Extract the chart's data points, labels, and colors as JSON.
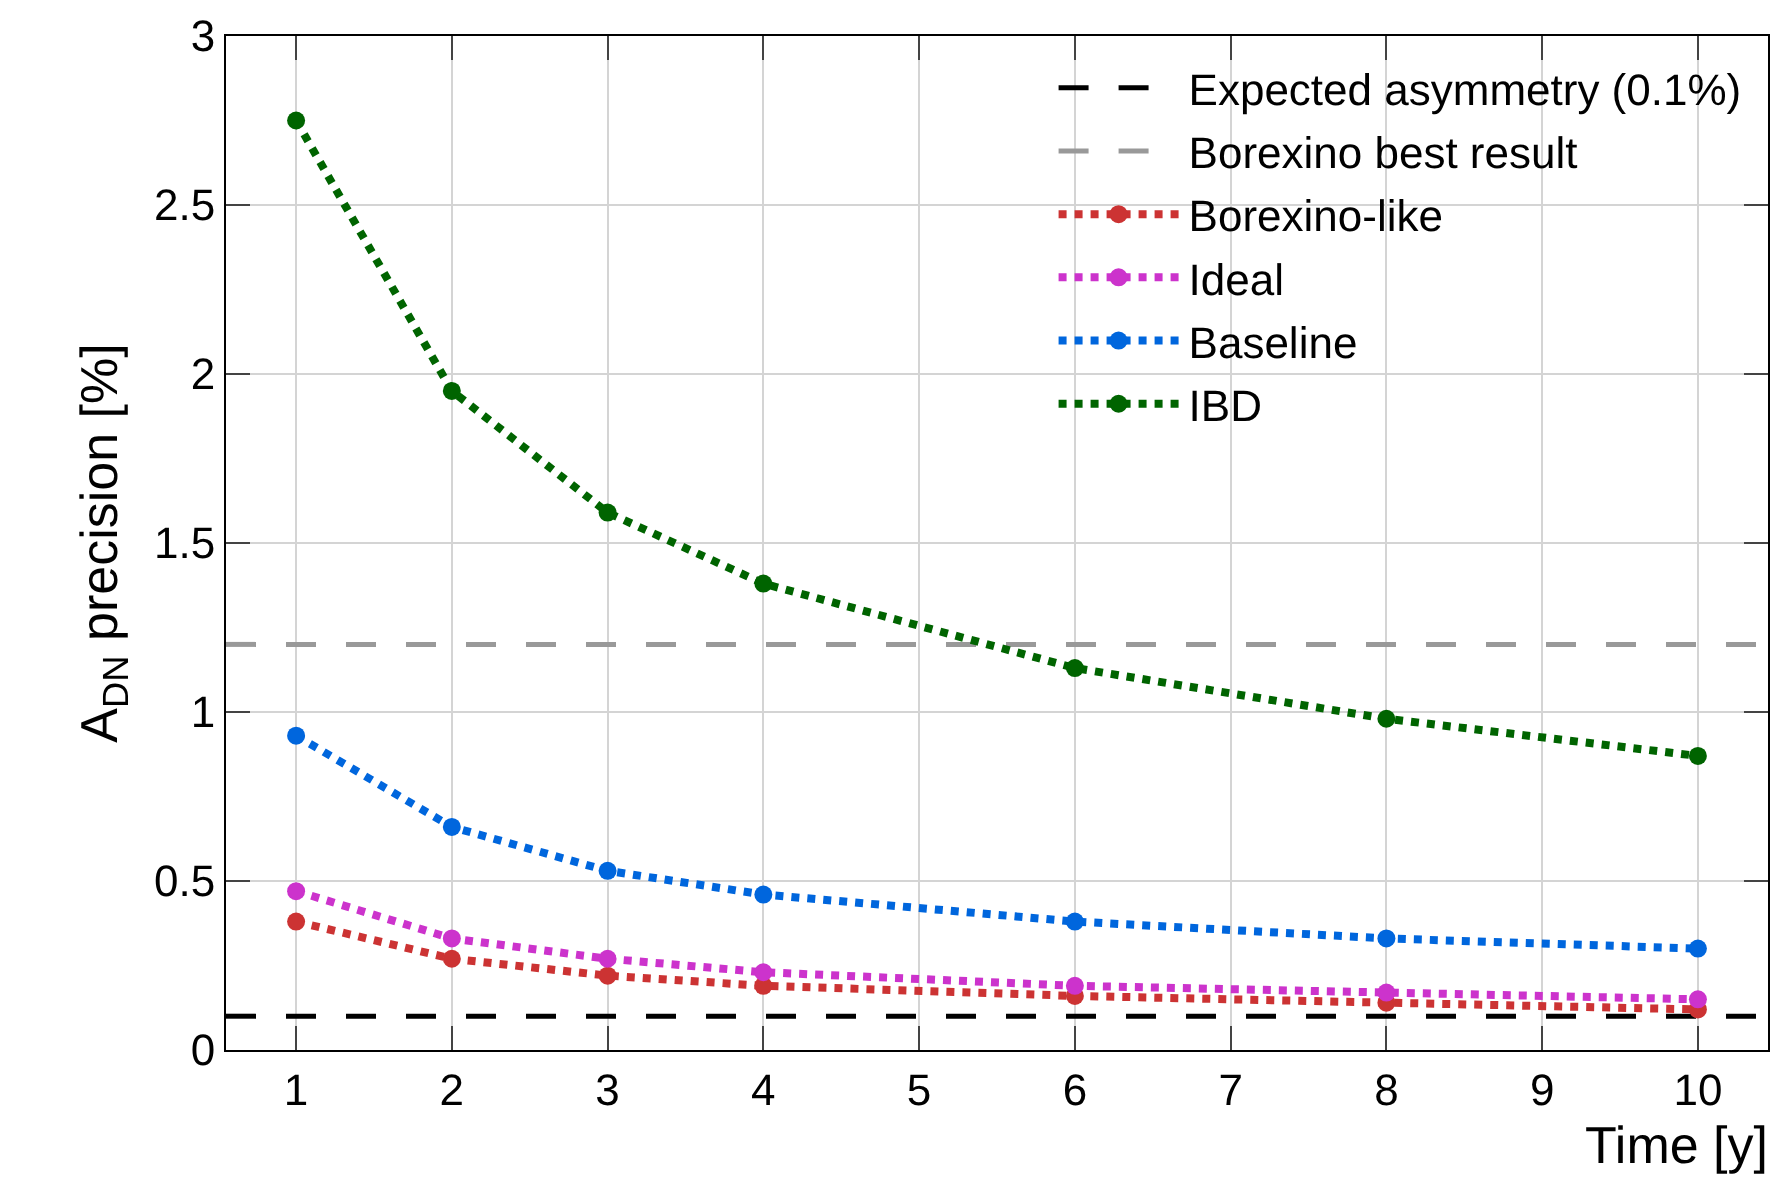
{
  "chart_data": {
    "type": "line",
    "xlabel": "Time [y]",
    "ylabel": "A$_{DN}$ precision [%]",
    "x": [
      1,
      2,
      3,
      4,
      6,
      8,
      10
    ],
    "series": [
      {
        "name": "Borexino-like",
        "color": "#cc3333",
        "values": [
          0.38,
          0.27,
          0.22,
          0.19,
          0.16,
          0.14,
          0.12
        ]
      },
      {
        "name": "Ideal",
        "color": "#cc33cc",
        "values": [
          0.47,
          0.33,
          0.27,
          0.23,
          0.19,
          0.17,
          0.15
        ]
      },
      {
        "name": "Baseline",
        "color": "#0066dd",
        "values": [
          0.93,
          0.66,
          0.53,
          0.46,
          0.38,
          0.33,
          0.3
        ]
      },
      {
        "name": "IBD",
        "color": "#006400",
        "values": [
          2.75,
          1.95,
          1.59,
          1.38,
          1.13,
          0.98,
          0.87
        ]
      }
    ],
    "ref_lines": [
      {
        "axis": "y",
        "value": 0.1,
        "label": "Expected asymmetry (0.1%)",
        "color": "#000000",
        "line_style": "dashed"
      },
      {
        "axis": "y",
        "value": 1.2,
        "label": "Borexino best result",
        "color": "#999999",
        "line_style": "dashed"
      }
    ],
    "xlim": [
      0.55,
      10.45
    ],
    "xticks": [
      1,
      2,
      3,
      4,
      5,
      6,
      7,
      8,
      9,
      10
    ],
    "ylim": [
      0,
      3
    ],
    "yticks": [
      0,
      0.5,
      1,
      1.5,
      2,
      2.5,
      3
    ],
    "grid": true,
    "legend": "top right",
    "marker": "circle",
    "line_style": "dotted"
  }
}
